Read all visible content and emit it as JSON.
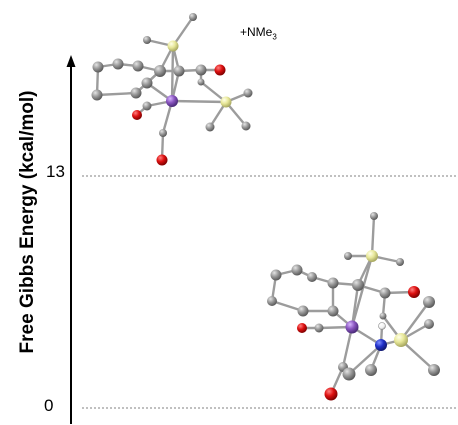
{
  "y_axis": {
    "label": "Free Gibbs Energy (kcal/mol)",
    "ticks": [
      "13",
      "0"
    ]
  },
  "states": [
    {
      "energy": 13,
      "annotation": "+NMe",
      "annotation_sub": "3"
    },
    {
      "energy": 0
    }
  ],
  "colors": {
    "axis": "#000000",
    "guide_line": "#9a9a9a",
    "carbon": "#8c8c8c",
    "oxygen": "#d01010",
    "silicon": "#e8e8a0",
    "manganese": "#8a55c0",
    "nitrogen": "#2020c0",
    "hydrogen": "#ffffff"
  }
}
